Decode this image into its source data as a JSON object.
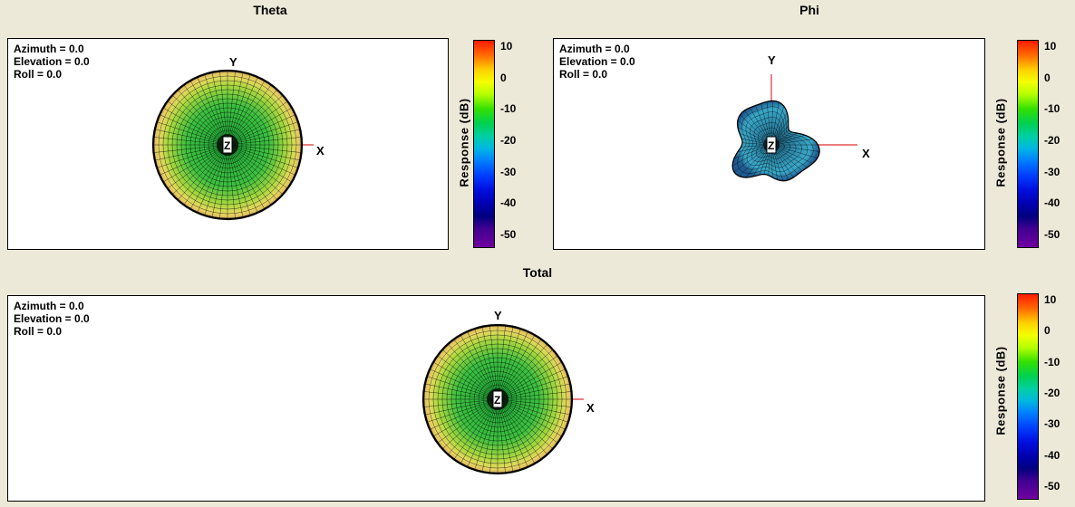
{
  "panels": {
    "theta": {
      "title": "Theta",
      "azimuth": "Azimuth = 0.0",
      "elevation": "Elevation = 0.0",
      "roll": "Roll = 0.0",
      "axis_x": "X",
      "axis_y": "Y",
      "axis_z": "Z"
    },
    "phi": {
      "title": "Phi",
      "azimuth": "Azimuth = 0.0",
      "elevation": "Elevation = 0.0",
      "roll": "Roll = 0.0",
      "axis_x": "X",
      "axis_y": "Y",
      "axis_z": "Z"
    },
    "total": {
      "title": "Total",
      "azimuth": "Azimuth = 0.0",
      "elevation": "Elevation = 0.0",
      "roll": "Roll = 0.0",
      "axis_x": "X",
      "axis_y": "Y",
      "axis_z": "Z"
    }
  },
  "colorbar": {
    "label": "Response (dB)",
    "ticks": [
      "10",
      "0",
      "-10",
      "-20",
      "-30",
      "-40",
      "-50"
    ]
  },
  "colors": {
    "background": "#ece9d8",
    "axis_line": "#e03030",
    "mesh_line": "#000000"
  }
}
